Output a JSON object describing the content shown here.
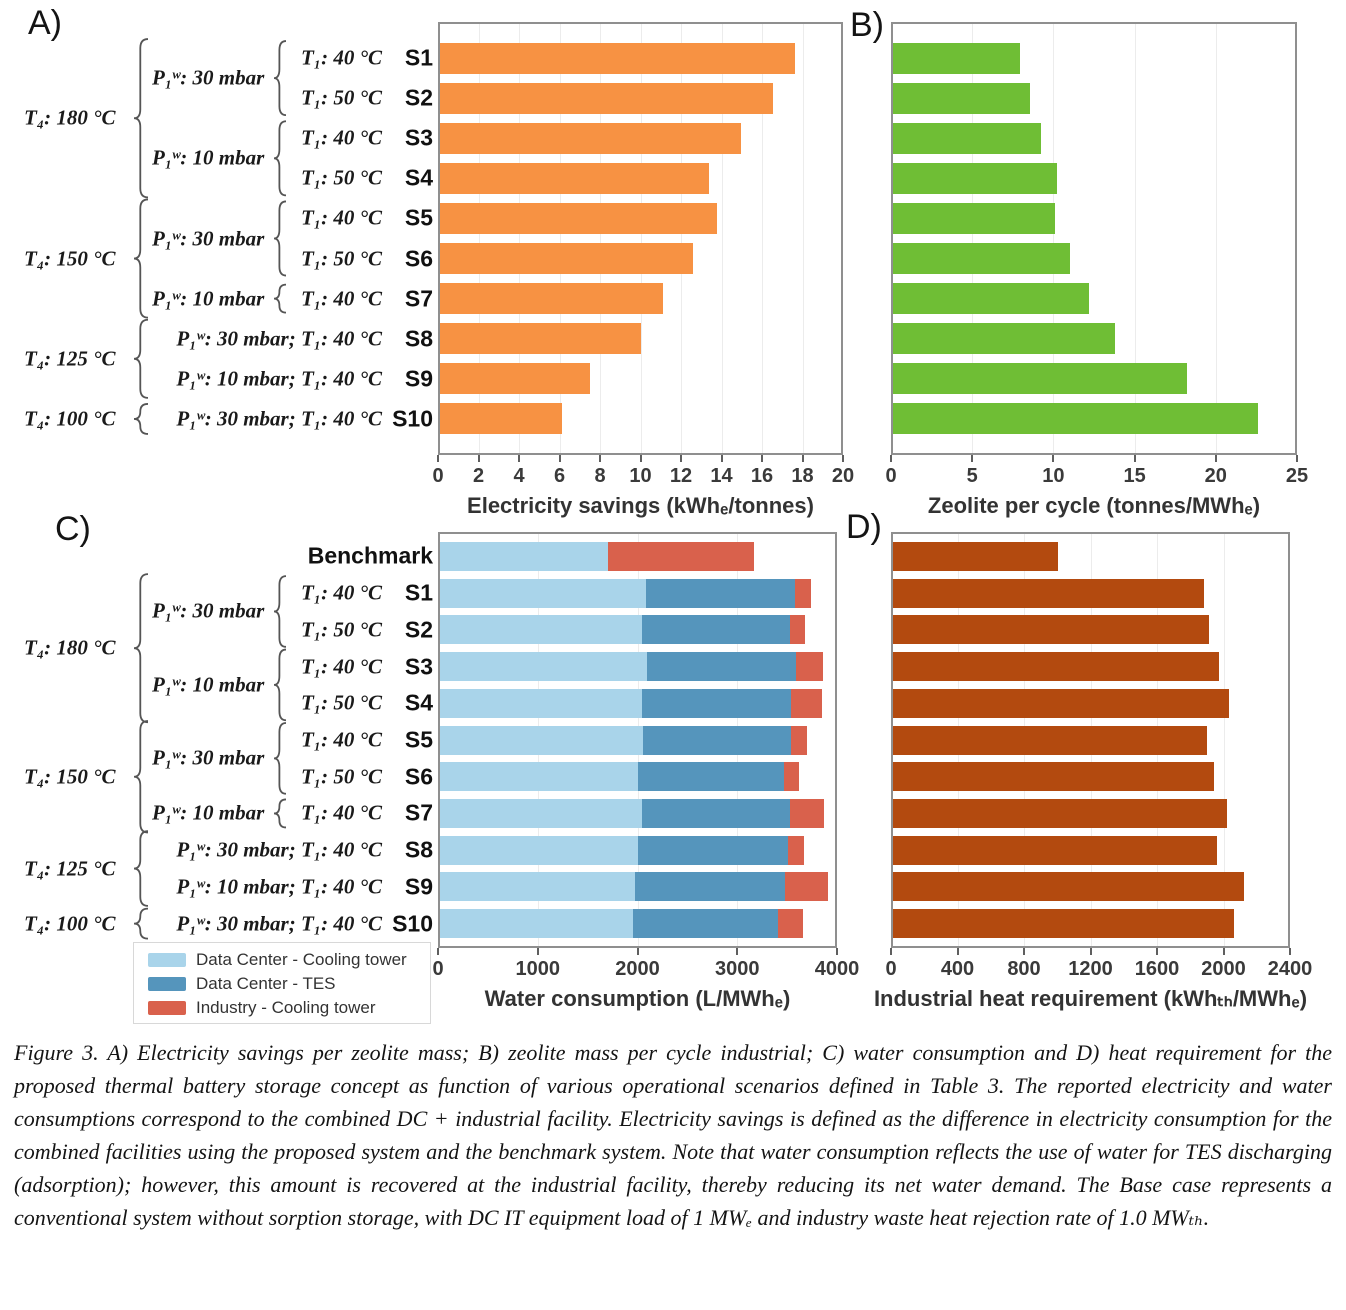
{
  "panel_tags": {
    "A": "A)",
    "B": "B)",
    "C": "C)",
    "D": "D)"
  },
  "scenario_axis": {
    "benchmark_label": "Benchmark",
    "scenarios": [
      "S1",
      "S2",
      "S3",
      "S4",
      "S5",
      "S6",
      "S7",
      "S8",
      "S9",
      "S10"
    ],
    "t1_labels": [
      "T₁: 40 °C",
      "T₁: 50 °C",
      "T₁: 40 °C",
      "T₁: 50 °C",
      "T₁: 40 °C",
      "T₁: 50 °C",
      "T₁: 40 °C",
      "P₁ʷ: 30 mbar;  T₁: 40 °C",
      "P₁ʷ: 10 mbar;  T₁: 40 °C",
      "P₁ʷ: 30 mbar;  T₁: 40 °C"
    ],
    "p_groups": [
      {
        "label": "P₁ʷ: 30 mbar",
        "rows": [
          0,
          1
        ]
      },
      {
        "label": "P₁ʷ: 10 mbar",
        "rows": [
          2,
          3
        ]
      },
      {
        "label": "P₁ʷ: 30 mbar",
        "rows": [
          4,
          5
        ]
      },
      {
        "label": "P₁ʷ: 10 mbar",
        "rows": [
          6,
          6
        ]
      }
    ],
    "t4_groups": [
      {
        "label": "T₄: 180 °C",
        "rows": [
          0,
          3
        ]
      },
      {
        "label": "T₄: 150 °C",
        "rows": [
          4,
          6
        ]
      },
      {
        "label": "T₄: 125 °C",
        "rows": [
          7,
          8
        ]
      },
      {
        "label": "T₄: 100 °C",
        "rows": [
          9,
          9
        ]
      }
    ]
  },
  "legend": {
    "items": [
      {
        "label": "Data Center - Cooling tower",
        "color": "#A9D4EA"
      },
      {
        "label": "Data Center - TES",
        "color": "#5595BC"
      },
      {
        "label": "Industry - Cooling tower",
        "color": "#D9614C"
      }
    ]
  },
  "caption": "Figure 3. A) Electricity savings per zeolite mass; B) zeolite mass per cycle industrial; C) water consumption and D) heat requirement for the proposed thermal battery storage concept as function of various operational scenarios defined in Table 3. The reported electricity and water consumptions correspond to the combined DC + industrial facility. Electricity savings is defined as the difference in electricity consumption for the combined facilities using the proposed system and the benchmark system. Note that water consumption reflects the use of water for TES discharging (adsorption); however, this amount is recovered at the industrial facility, thereby reducing its net water demand. The Base case represents a conventional system without sorption storage, with DC IT equipment load of 1 MWₑ and industry waste heat rejection rate of 1.0 MWₜₕ.",
  "chart_data": [
    {
      "id": "A",
      "type": "bar",
      "title": "",
      "xlabel": "Electricity savings (kWhₑ/tonnes)",
      "xlim": [
        0,
        20
      ],
      "xticks": [
        0,
        2,
        4,
        6,
        8,
        10,
        12,
        14,
        16,
        18,
        20
      ],
      "grid": true,
      "legend_position": "none",
      "bar_color": "#F79243",
      "categories": [
        "S1",
        "S2",
        "S3",
        "S4",
        "S5",
        "S6",
        "S7",
        "S8",
        "S9",
        "S10"
      ],
      "values": [
        17.7,
        16.6,
        15.0,
        13.4,
        13.8,
        12.6,
        11.1,
        10.0,
        7.5,
        6.1
      ]
    },
    {
      "id": "B",
      "type": "bar",
      "title": "",
      "xlabel": "Zeolite per cycle (tonnes/MWhₑ)",
      "xlim": [
        0,
        25
      ],
      "xticks": [
        0,
        5,
        10,
        15,
        20,
        25
      ],
      "grid": true,
      "legend_position": "none",
      "bar_color": "#6FBE35",
      "categories": [
        "S1",
        "S2",
        "S3",
        "S4",
        "S5",
        "S6",
        "S7",
        "S8",
        "S9",
        "S10"
      ],
      "values": [
        7.9,
        8.5,
        9.2,
        10.2,
        10.1,
        11.0,
        12.2,
        13.8,
        18.3,
        22.7
      ]
    },
    {
      "id": "C",
      "type": "stacked-bar",
      "title": "",
      "xlabel": "Water consumption (L/MWhₑ)",
      "xlim": [
        0,
        4000
      ],
      "xticks": [
        0,
        1000,
        2000,
        3000,
        4000
      ],
      "grid": true,
      "legend_position": "lower-left",
      "categories": [
        "Benchmark",
        "S1",
        "S2",
        "S3",
        "S4",
        "S5",
        "S6",
        "S7",
        "S8",
        "S9",
        "S10"
      ],
      "series": [
        {
          "name": "Data Center - Cooling tower",
          "color": "#A9D4EA",
          "values": [
            1700,
            2090,
            2050,
            2100,
            2050,
            2060,
            2000,
            2050,
            2010,
            1970,
            1950
          ]
        },
        {
          "name": "Data Center - TES",
          "color": "#5595BC",
          "values": [
            0,
            1500,
            1490,
            1500,
            1500,
            1490,
            1480,
            1490,
            1510,
            1520,
            1470
          ]
        },
        {
          "name": "Industry - Cooling tower",
          "color": "#D9614C",
          "values": [
            1480,
            170,
            160,
            280,
            320,
            170,
            160,
            350,
            170,
            440,
            260
          ]
        }
      ]
    },
    {
      "id": "D",
      "type": "bar",
      "title": "",
      "xlabel": "Industrial heat requirement (kWhₜₕ/MWhₑ)",
      "xlim": [
        0,
        2400
      ],
      "xticks": [
        0,
        400,
        800,
        1200,
        1600,
        2000,
        2400
      ],
      "grid": true,
      "legend_position": "none",
      "bar_color": "#B34A0F",
      "categories": [
        "Benchmark",
        "S1",
        "S2",
        "S3",
        "S4",
        "S5",
        "S6",
        "S7",
        "S8",
        "S9",
        "S10"
      ],
      "values": [
        1000,
        1890,
        1920,
        1980,
        2040,
        1910,
        1950,
        2030,
        1970,
        2130,
        2070
      ]
    }
  ]
}
